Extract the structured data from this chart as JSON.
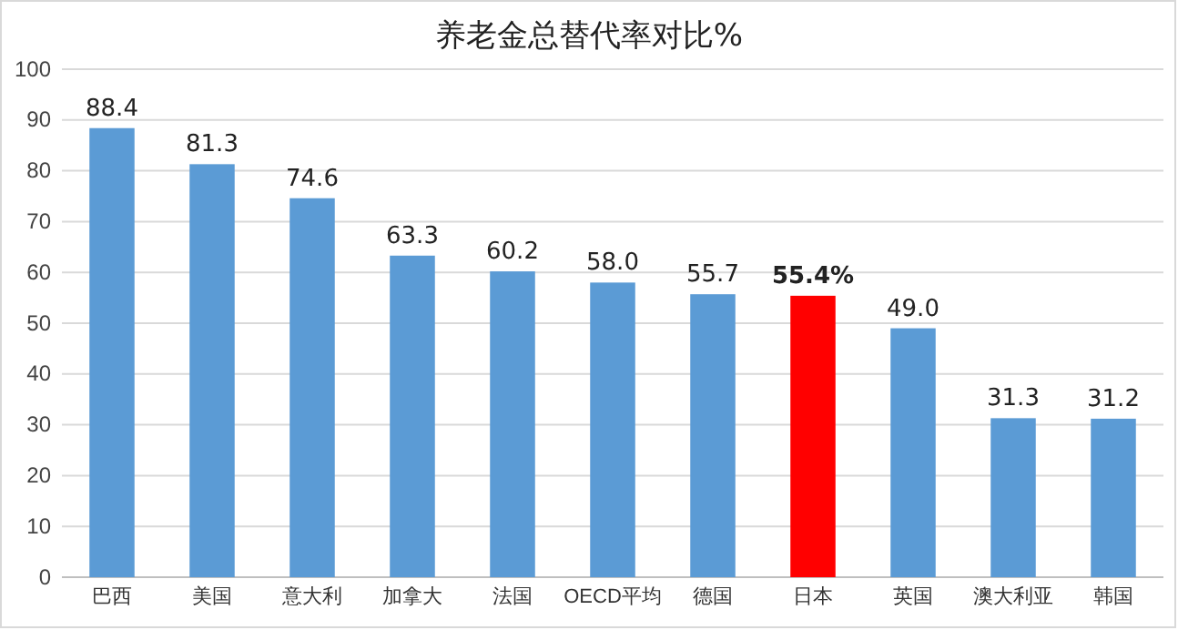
{
  "chart_data": {
    "type": "bar",
    "title": "养老金总替代率对比%",
    "categories": [
      "巴西",
      "美国",
      "意大利",
      "加拿大",
      "法国",
      "OECD平均",
      "德国",
      "日本",
      "英国",
      "澳大利亚",
      "韩国"
    ],
    "values": [
      88.4,
      81.3,
      74.6,
      63.3,
      60.2,
      58.0,
      55.7,
      55.4,
      49.0,
      31.3,
      31.2
    ],
    "value_labels": [
      "88.4",
      "81.3",
      "74.6",
      "63.3",
      "60.2",
      "58.0",
      "55.7",
      "55.4%",
      "49.0",
      "31.3",
      "31.2"
    ],
    "colors": [
      "#5b9bd5",
      "#5b9bd5",
      "#5b9bd5",
      "#5b9bd5",
      "#5b9bd5",
      "#5b9bd5",
      "#5b9bd5",
      "#ff0000",
      "#5b9bd5",
      "#5b9bd5",
      "#5b9bd5"
    ],
    "ylim": [
      0,
      100
    ],
    "yticks": [
      0,
      10,
      20,
      30,
      40,
      50,
      60,
      70,
      80,
      90,
      100
    ],
    "grid": "y"
  }
}
